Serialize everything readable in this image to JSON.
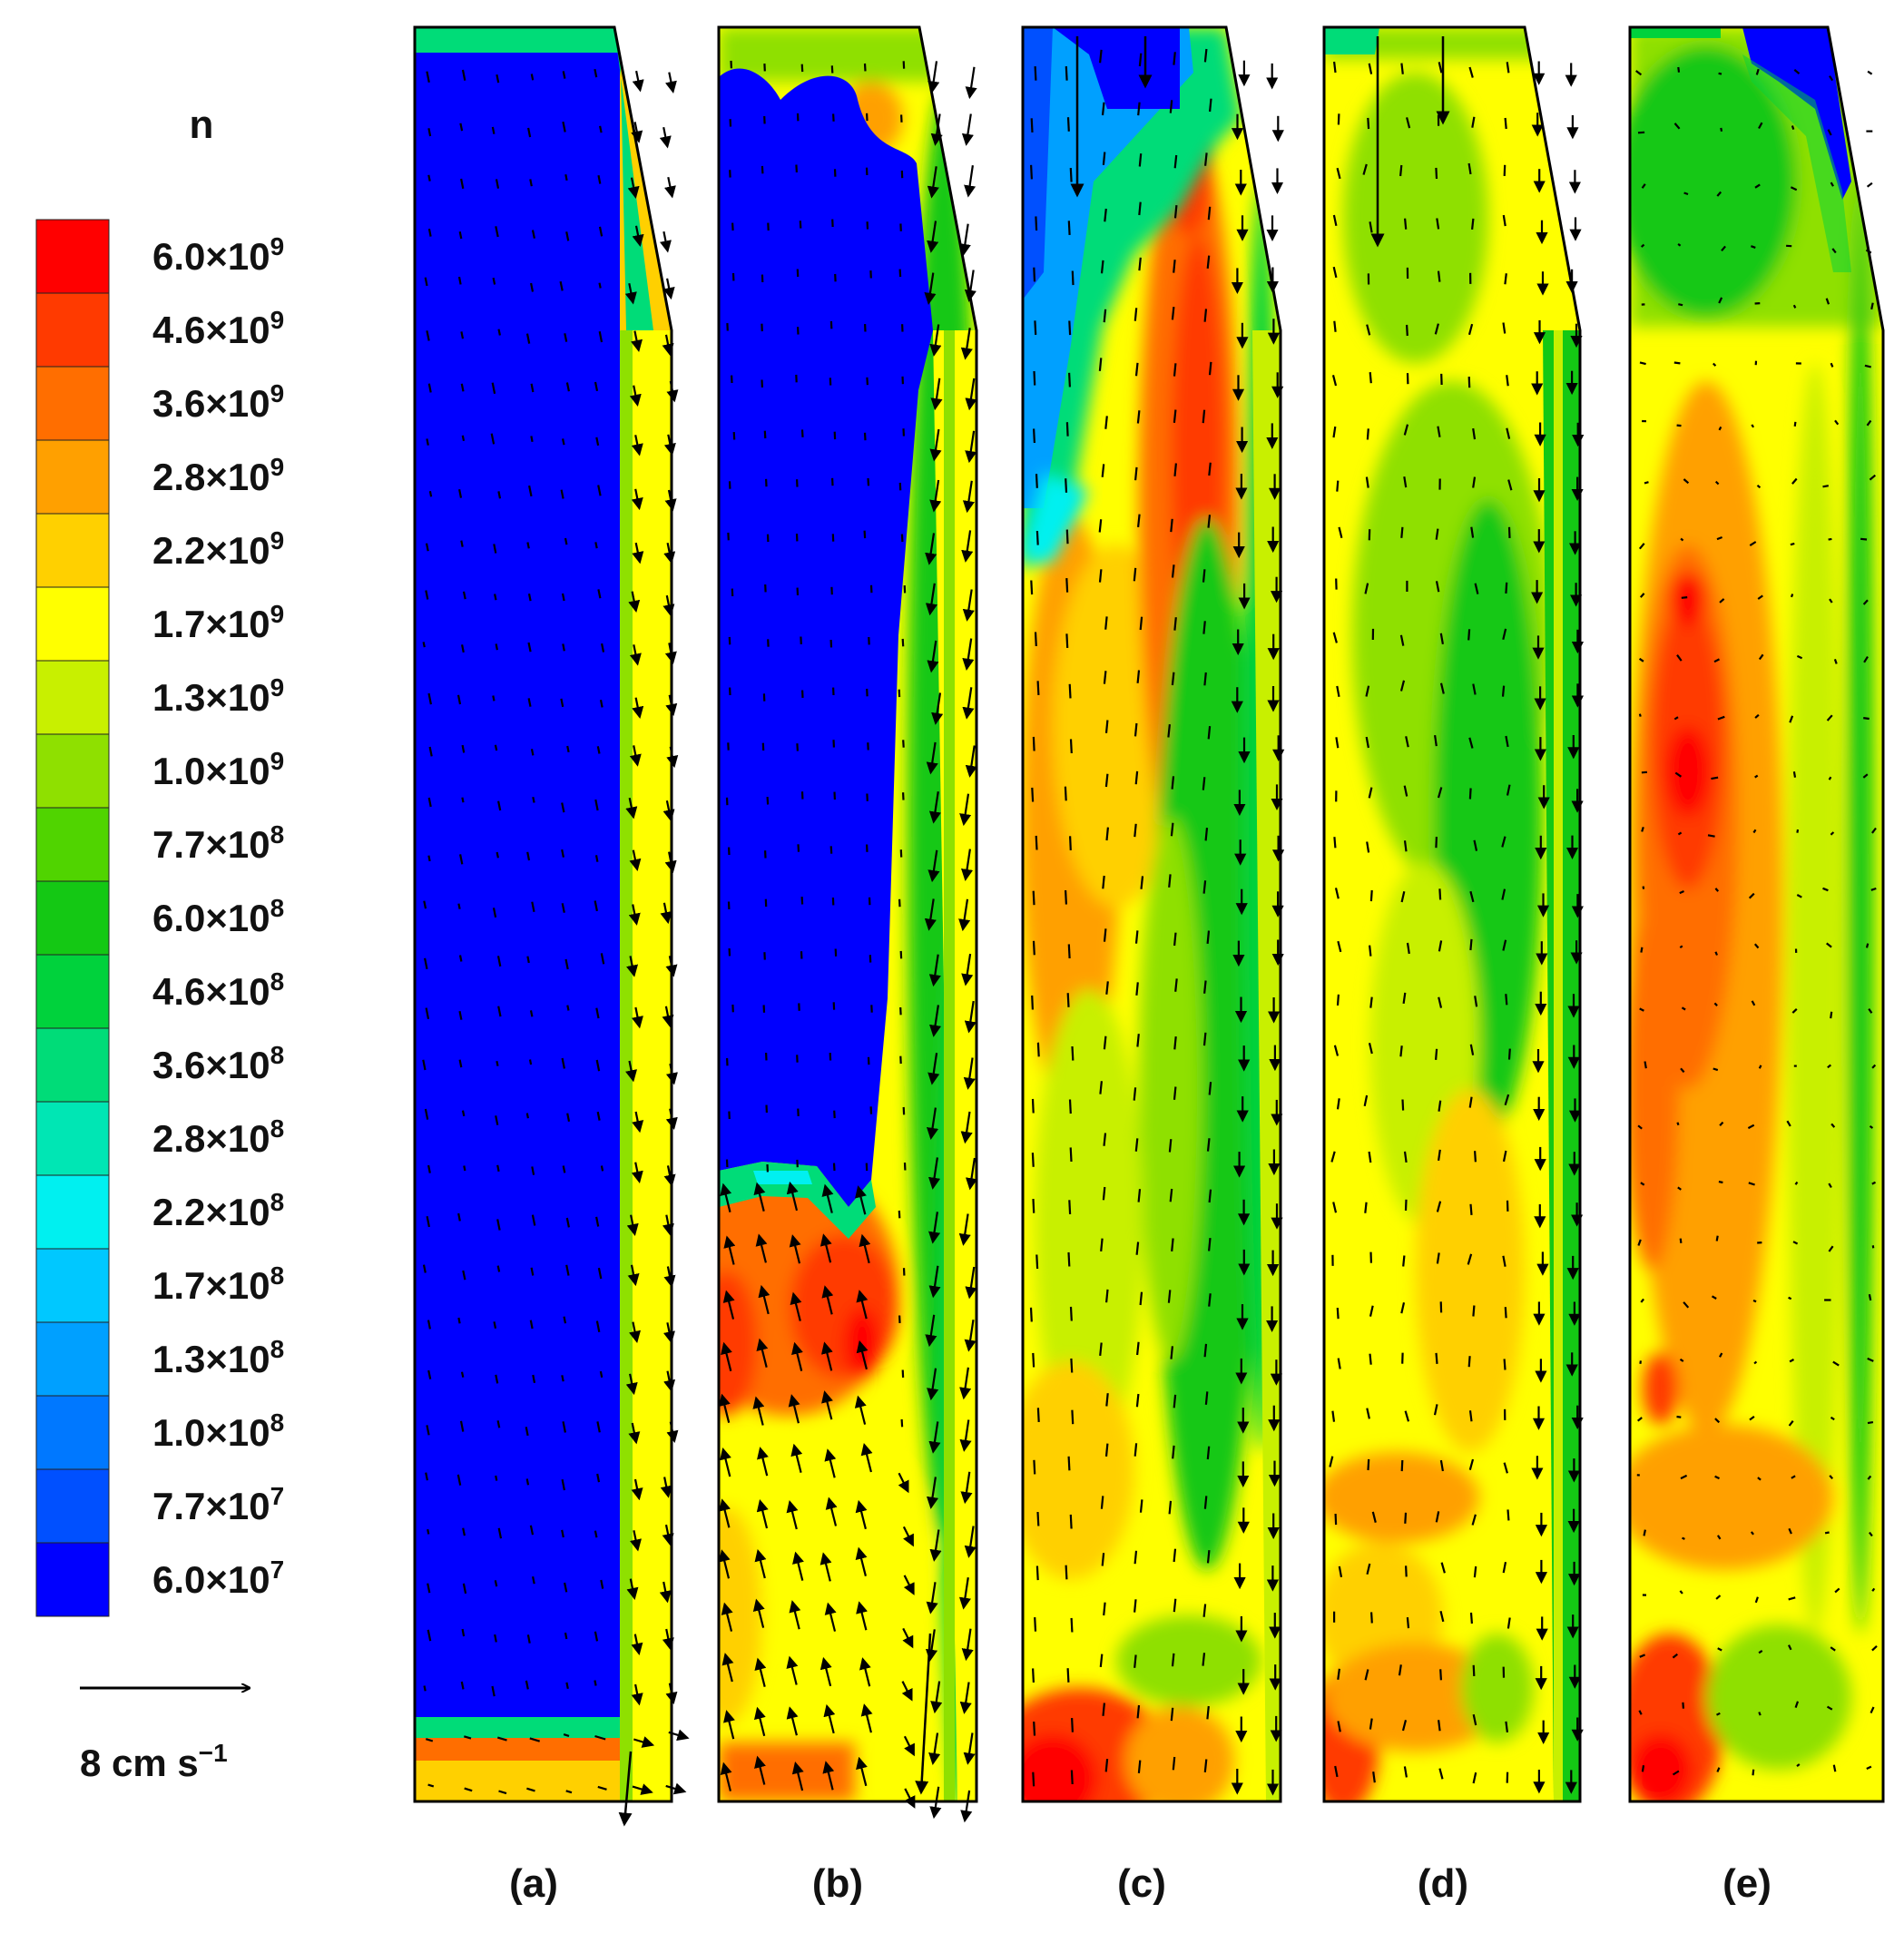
{
  "legend": {
    "variable": "n",
    "levels": [
      {
        "coef": "6.0",
        "exp": "9",
        "color": "#ff0000"
      },
      {
        "coef": "4.6",
        "exp": "9",
        "color": "#ff3a00"
      },
      {
        "coef": "3.6",
        "exp": "9",
        "color": "#ff6e00"
      },
      {
        "coef": "2.8",
        "exp": "9",
        "color": "#ffa000"
      },
      {
        "coef": "2.2",
        "exp": "9",
        "color": "#ffd000"
      },
      {
        "coef": "1.7",
        "exp": "9",
        "color": "#ffff00"
      },
      {
        "coef": "1.3",
        "exp": "9",
        "color": "#c8f000"
      },
      {
        "coef": "1.0",
        "exp": "9",
        "color": "#8fe000"
      },
      {
        "coef": "7.7",
        "exp": "8",
        "color": "#50d400"
      },
      {
        "coef": "6.0",
        "exp": "8",
        "color": "#14c814"
      },
      {
        "coef": "4.6",
        "exp": "8",
        "color": "#00d23c"
      },
      {
        "coef": "3.6",
        "exp": "8",
        "color": "#00dc78"
      },
      {
        "coef": "2.8",
        "exp": "8",
        "color": "#00e6b4"
      },
      {
        "coef": "2.2",
        "exp": "8",
        "color": "#00f0f0"
      },
      {
        "coef": "1.7",
        "exp": "8",
        "color": "#00c8ff"
      },
      {
        "coef": "1.3",
        "exp": "8",
        "color": "#00a0ff"
      },
      {
        "coef": "1.0",
        "exp": "8",
        "color": "#0078ff"
      },
      {
        "coef": "7.7",
        "exp": "7",
        "color": "#0050ff"
      },
      {
        "coef": "6.0",
        "exp": "7",
        "color": "#0000ff"
      }
    ]
  },
  "scale_arrow": {
    "label": "8 cm s",
    "exp": "−1"
  },
  "panels": [
    {
      "label": "(a)"
    },
    {
      "label": "(b)"
    },
    {
      "label": "(c)"
    },
    {
      "label": "(d)"
    },
    {
      "label": "(e)"
    }
  ],
  "colors": {
    "blue": "#0000ff",
    "cyan": "#00f0f0",
    "green": "#14c814",
    "lightgreen": "#8fe000",
    "yellow": "#ffff00",
    "gold": "#ffd000",
    "orange": "#ffa000",
    "darkorange": "#ff6e00",
    "red": "#ff0000"
  }
}
